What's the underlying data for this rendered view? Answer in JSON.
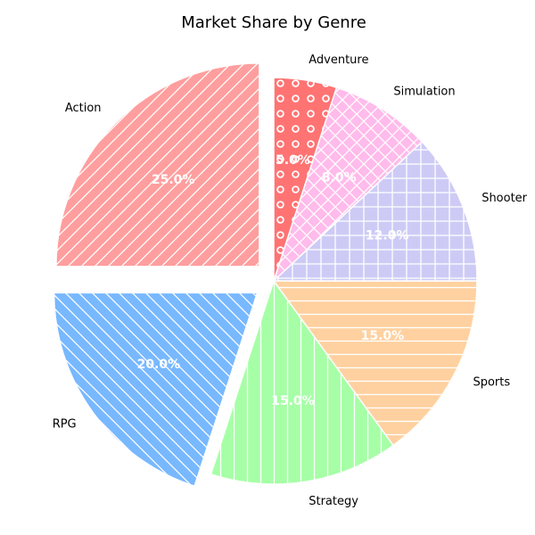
{
  "chart_data": {
    "type": "pie",
    "title": "Market Share by Genre",
    "categories": [
      "Action",
      "RPG",
      "Strategy",
      "Sports",
      "Shooter",
      "Simulation",
      "Adventure"
    ],
    "values": [
      25.0,
      20.0,
      15.0,
      15.0,
      12.0,
      8.0,
      5.0
    ],
    "value_labels": [
      "25.0%",
      "20.0%",
      "15.0%",
      "15.0%",
      "12.0%",
      "8.0%",
      "5.0%"
    ],
    "colors": [
      "#ff9e9e",
      "#78b8ff",
      "#a6ffa6",
      "#ffd1a0",
      "#cdcbf5",
      "#ffbbeb",
      "#ff7373"
    ],
    "patterns": [
      "diagonal-forward",
      "diagonal-back",
      "vertical",
      "horizontal",
      "grid",
      "crosshatch",
      "circles"
    ],
    "exploded": [
      "Action",
      "RPG"
    ],
    "legend": "none"
  }
}
